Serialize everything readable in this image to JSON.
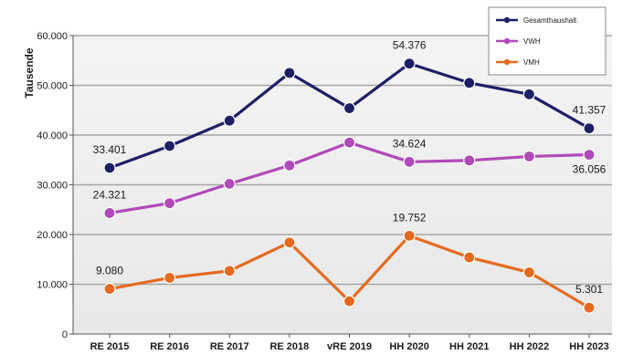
{
  "chart_data": {
    "type": "line",
    "title": "",
    "xlabel": "",
    "ylabel": "Tausende",
    "ylim": [
      0,
      60000
    ],
    "yticks": [
      "0",
      "10.000",
      "20.000",
      "30.000",
      "40.000",
      "50.000",
      "60.000"
    ],
    "grid": true,
    "legend_position": "top-right",
    "categories": [
      "RE 2015",
      "RE 2016",
      "RE 2017",
      "RE 2018",
      "vRE 2019",
      "HH 2020",
      "HH 2021",
      "HH 2022",
      "HH 2023"
    ],
    "series": [
      {
        "name": "Gesamthaushalt",
        "color": "#1c1f66",
        "values": [
          33401,
          37800,
          42900,
          52500,
          45400,
          54376,
          50500,
          48200,
          41357
        ],
        "labels": [
          "33.401",
          "",
          "",
          "",
          "",
          "54.376",
          "",
          "",
          "41.357"
        ]
      },
      {
        "name": "VWH",
        "color": "#b04ab8",
        "values": [
          24321,
          26300,
          30200,
          33900,
          38500,
          34624,
          34900,
          35700,
          36056
        ],
        "labels": [
          "24.321",
          "",
          "",
          "",
          "",
          "34.624",
          "",
          "",
          "36.056"
        ]
      },
      {
        "name": "VMH",
        "color": "#e66a1e",
        "values": [
          9080,
          11300,
          12700,
          18400,
          6600,
          19752,
          15400,
          12400,
          5301
        ],
        "labels": [
          "9.080",
          "",
          "",
          "",
          "",
          "19.752",
          "",
          "",
          "5.301"
        ]
      }
    ]
  }
}
